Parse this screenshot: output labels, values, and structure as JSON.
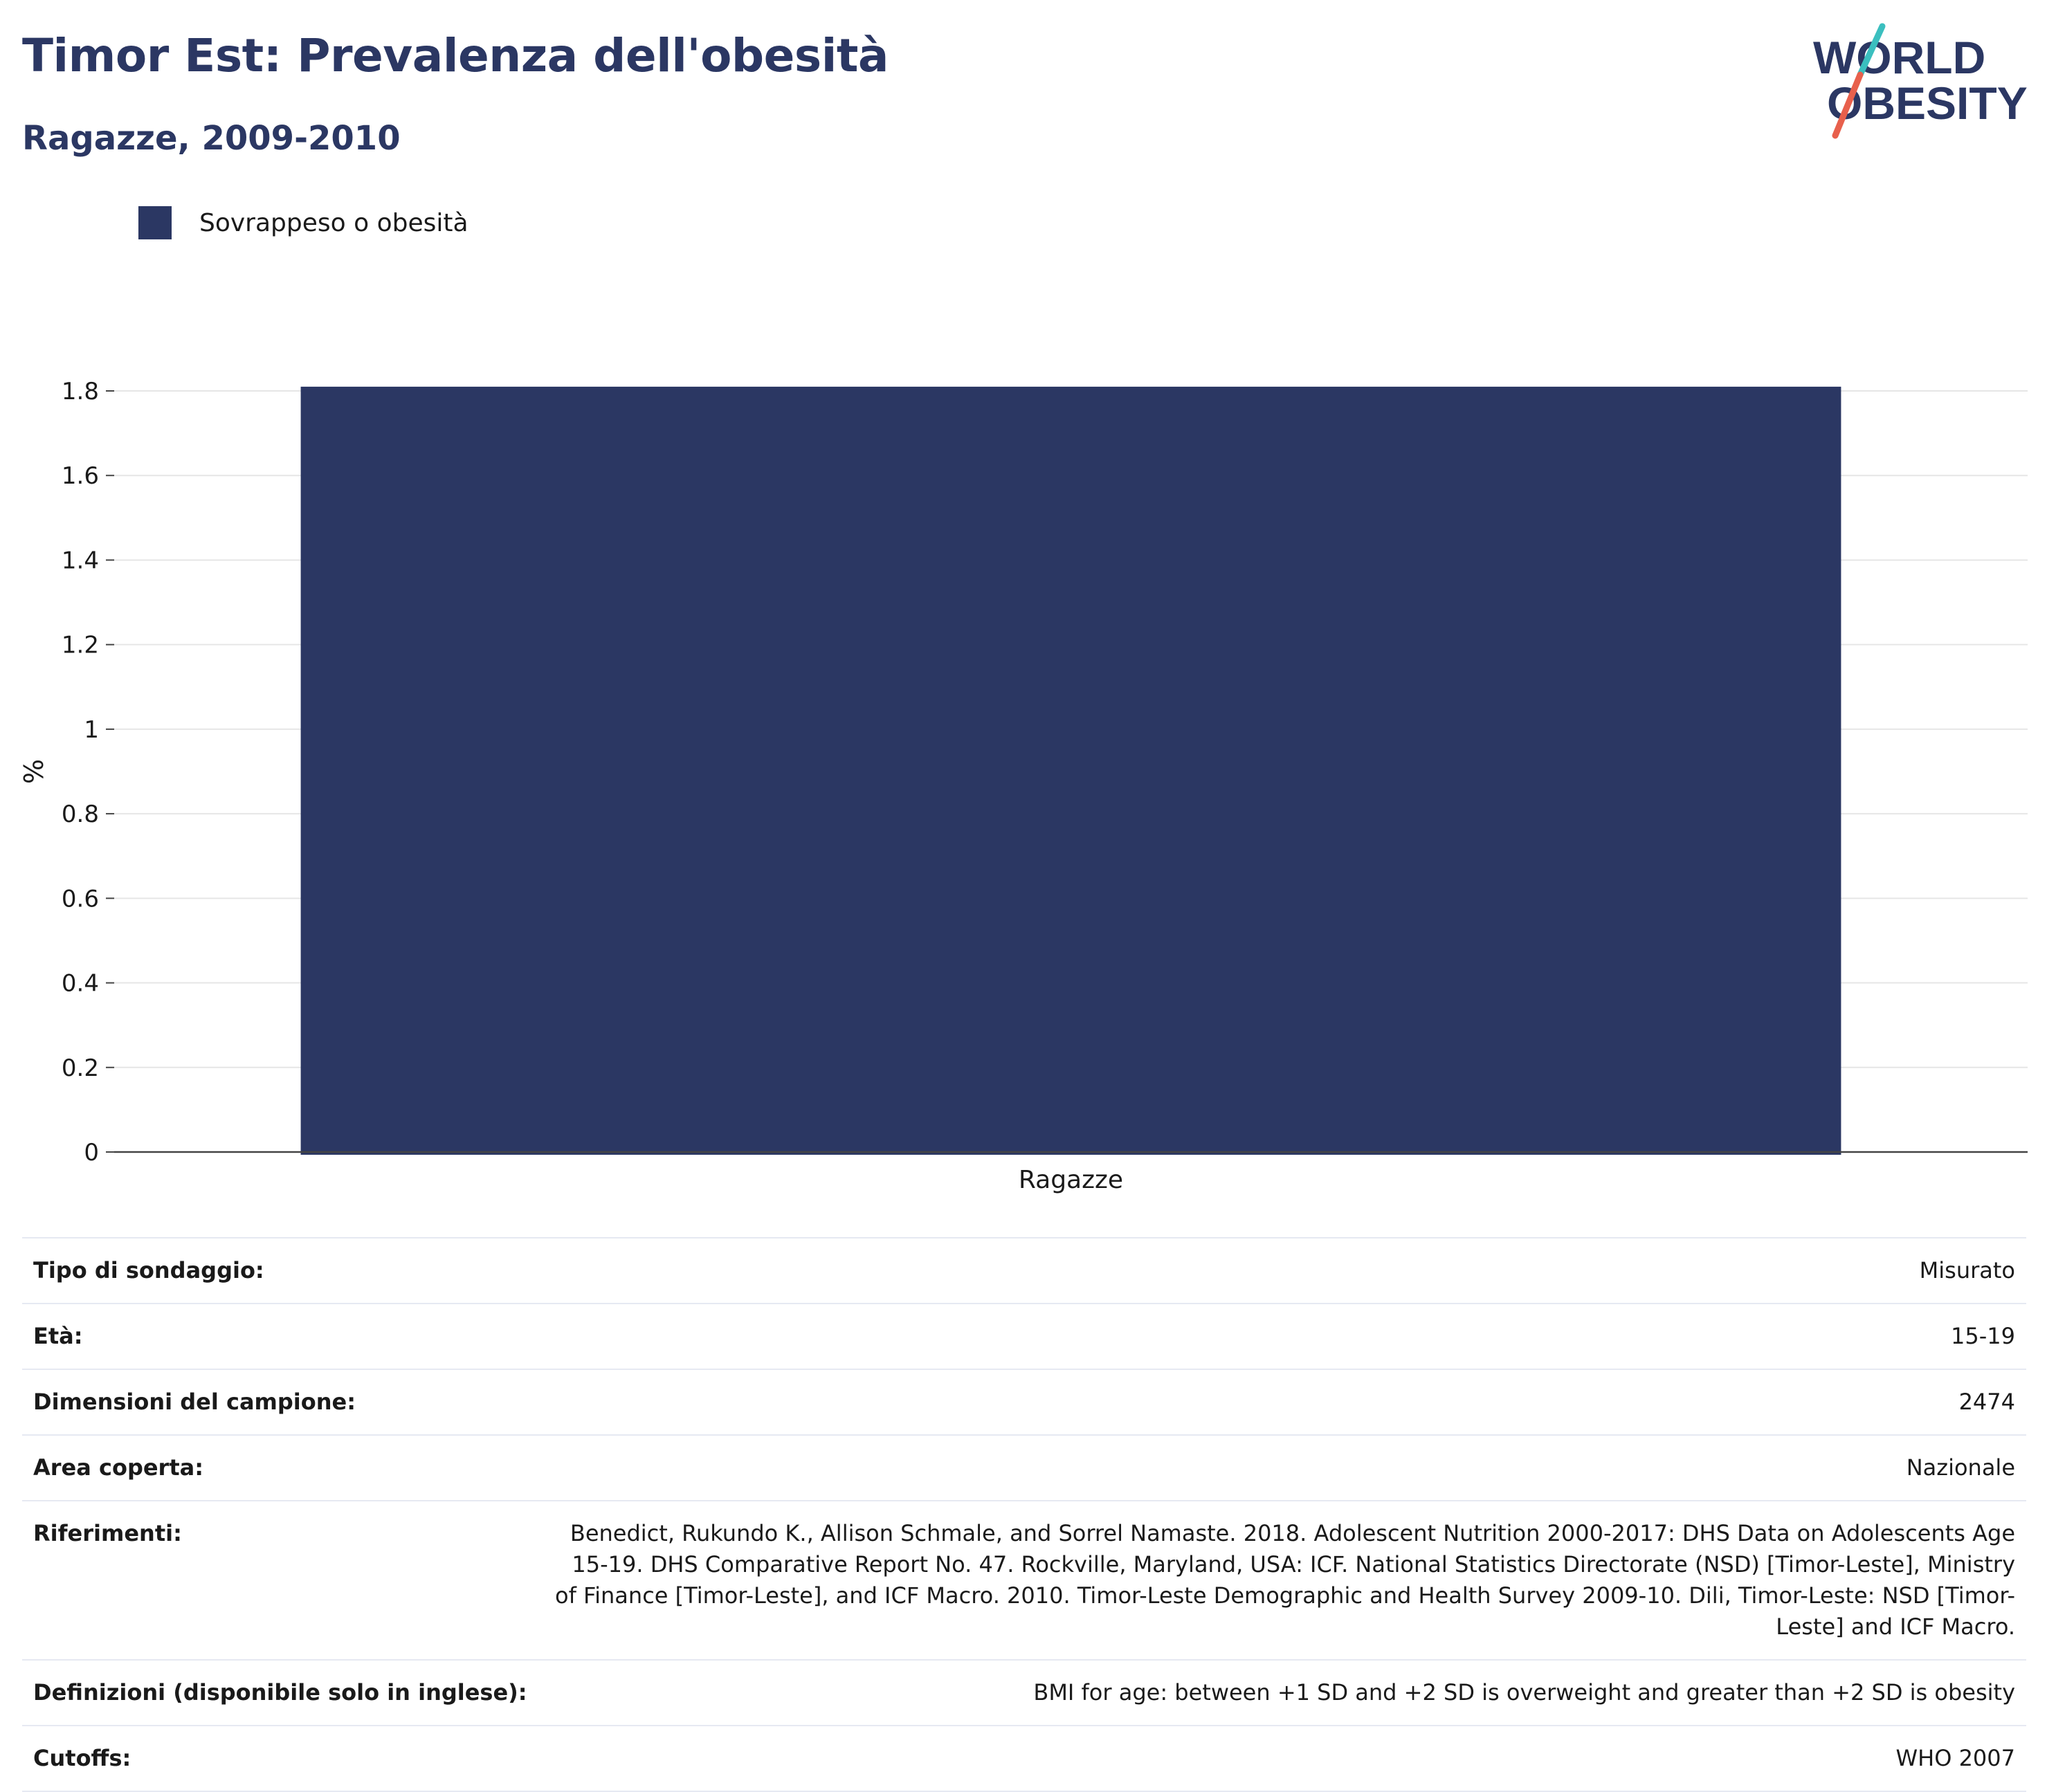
{
  "header": {
    "title": "Timor Est: Prevalenza dell'obesità",
    "subtitle": "Ragazze, 2009-2010"
  },
  "logo": {
    "line1": "WORLD",
    "line2": "OBESITY",
    "colors": [
      "#2b3763",
      "#3bbfbf",
      "#e8604c"
    ]
  },
  "legend": {
    "items": [
      {
        "label": "Sovrappeso o obesità",
        "color": "#2b3763"
      }
    ]
  },
  "chart_data": {
    "type": "bar",
    "title": "Timor Est: Prevalenza dell'obesità",
    "subtitle": "Ragazze, 2009-2010",
    "categories": [
      "Ragazze"
    ],
    "series": [
      {
        "name": "Sovrappeso o obesità",
        "values": [
          1.81
        ],
        "color": "#2b3763"
      }
    ],
    "xlabel": "",
    "ylabel": "%",
    "ylim": [
      0,
      1.8
    ],
    "yticks": [
      "0",
      "0.2",
      "0.4",
      "0.6",
      "0.8",
      "1",
      "1.2",
      "1.4",
      "1.6",
      "1.8"
    ],
    "grid": true,
    "legend_position": "top-left"
  },
  "info": {
    "rows": [
      {
        "key": "Tipo di sondaggio:",
        "value": "Misurato"
      },
      {
        "key": "Età:",
        "value": "15-19"
      },
      {
        "key": "Dimensioni del campione:",
        "value": "2474"
      },
      {
        "key": "Area coperta:",
        "value": "Nazionale"
      },
      {
        "key": "Riferimenti:",
        "value": "Benedict, Rukundo K., Allison Schmale, and Sorrel Namaste. 2018. Adolescent Nutrition 2000-2017: DHS Data on Adolescents Age 15-19. DHS Comparative Report No. 47. Rockville, Maryland, USA: ICF. National Statistics Directorate (NSD) [Timor-Leste], Ministry of Finance [Timor-Leste], and ICF Macro. 2010. Timor-Leste Demographic and Health Survey 2009-10. Dili, Timor-Leste: NSD [Timor-Leste] and ICF Macro."
      },
      {
        "key": "Definizioni (disponibile solo in inglese):",
        "value": "BMI for age: between +1 SD and +2 SD is overweight and greater than +2 SD is obesity"
      },
      {
        "key": "Cutoffs:",
        "value": "WHO 2007"
      }
    ]
  }
}
